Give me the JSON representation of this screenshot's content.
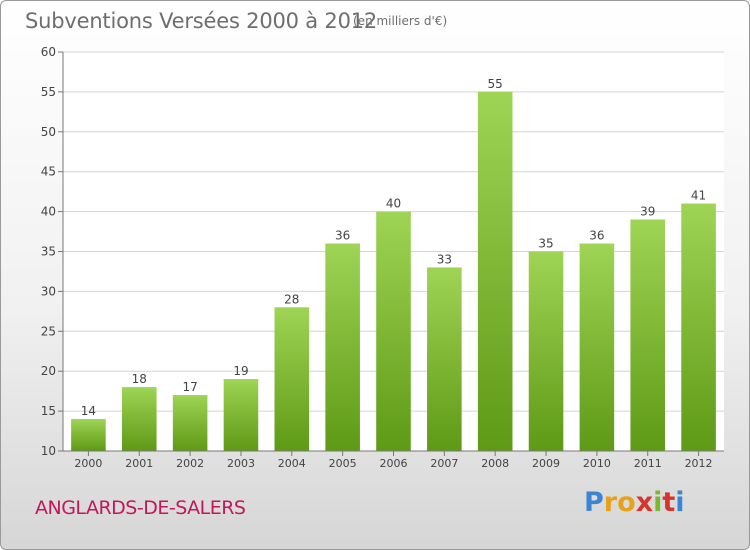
{
  "header": {
    "title": "Subventions Versées 2000 à 2012",
    "unit_note": "(en milliers d'€)"
  },
  "footer": {
    "commune": "ANGLARDS-DE-SALERS",
    "brand": {
      "letters": [
        "P",
        "r",
        "o",
        "x",
        "i",
        "t",
        "i"
      ],
      "colors": [
        "#3a86d4",
        "#e8a21a",
        "#e8a21a",
        "#d8342c",
        "#7cb82f",
        "#d8342c",
        "#3a86d4"
      ]
    }
  },
  "chart_data": {
    "type": "bar",
    "title": "Subventions Versées 2000 à 2012",
    "subtitle": "(en milliers d'€)",
    "xlabel": "",
    "ylabel": "",
    "categories": [
      "2000",
      "2001",
      "2002",
      "2003",
      "2004",
      "2005",
      "2006",
      "2007",
      "2008",
      "2009",
      "2010",
      "2011",
      "2012"
    ],
    "values": [
      14,
      18,
      17,
      19,
      28,
      36,
      40,
      33,
      55,
      35,
      36,
      39,
      41
    ],
    "data_labels": [
      "14",
      "18",
      "17",
      "19",
      "28",
      "36",
      "40",
      "33",
      "55",
      "35",
      "36",
      "39",
      "41"
    ],
    "ylim": [
      10,
      60
    ],
    "yticks": [
      10,
      15,
      20,
      25,
      30,
      35,
      40,
      45,
      50,
      55,
      60
    ],
    "grid": true,
    "legend": "none",
    "bar_color": "#7bbf2a",
    "bar_color_light": "#9fd454",
    "bar_color_dark": "#5e9a16"
  }
}
